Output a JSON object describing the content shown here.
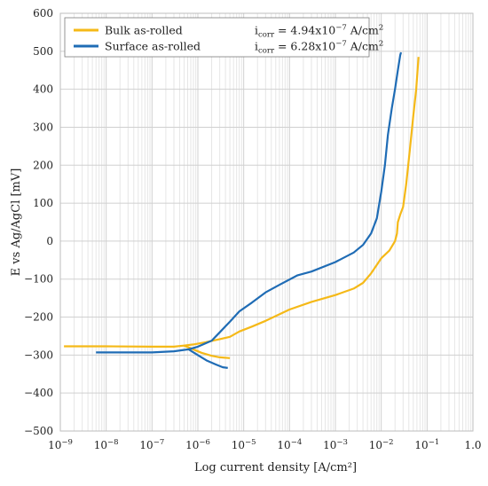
{
  "chart_data": {
    "type": "line",
    "xlabel": "Log current density [A/cm²]",
    "ylabel": "E vs Ag/AgCl [mV]",
    "x_scale": "log",
    "xlim": [
      1e-09,
      1.0
    ],
    "ylim": [
      -500,
      600
    ],
    "grid": true,
    "legend_position": "top-left",
    "x_ticks": [
      {
        "value": 1e-09,
        "base": "10",
        "exp": "−9"
      },
      {
        "value": 1e-08,
        "base": "10",
        "exp": "−8"
      },
      {
        "value": 1e-07,
        "base": "10",
        "exp": "−7"
      },
      {
        "value": 1e-06,
        "base": "10",
        "exp": "−6"
      },
      {
        "value": 1e-05,
        "base": "10",
        "exp": "−5"
      },
      {
        "value": 0.0001,
        "base": "10",
        "exp": "−4"
      },
      {
        "value": 0.001,
        "base": "10",
        "exp": "−3"
      },
      {
        "value": 0.01,
        "base": "10",
        "exp": "−2"
      },
      {
        "value": 0.1,
        "base": "10",
        "exp": "−1"
      },
      {
        "value": 1.0,
        "base": "1.0",
        "exp": ""
      }
    ],
    "y_ticks": [
      600,
      500,
      400,
      300,
      200,
      100,
      0,
      -100,
      -200,
      -300,
      -400,
      -500
    ],
    "series": [
      {
        "name": "Bulk as-rolled",
        "color": "#F5B918",
        "icorr": {
          "prefix": "i",
          "sub": "corr",
          "mid": " = 4.94x10",
          "exp": "−7",
          "unit": " A/cm",
          "unit_exp": "2"
        },
        "points": [
          [
            1.2e-09,
            -277
          ],
          [
            1e-08,
            -277
          ],
          [
            1e-07,
            -278
          ],
          [
            3e-07,
            -278
          ],
          [
            4.94e-07,
            -275
          ],
          [
            8e-07,
            -272
          ],
          [
            1.5e-06,
            -266
          ],
          [
            3e-06,
            -258
          ],
          [
            5e-06,
            -252
          ],
          [
            8e-06,
            -238
          ],
          [
            1.5e-05,
            -225
          ],
          [
            3e-05,
            -210
          ],
          [
            0.0001,
            -180
          ],
          [
            0.0003,
            -160
          ],
          [
            0.001,
            -142
          ],
          [
            0.0025,
            -125
          ],
          [
            0.004,
            -110
          ],
          [
            0.006,
            -85
          ],
          [
            0.01,
            -45
          ],
          [
            0.015,
            -25
          ],
          [
            0.02,
            0
          ],
          [
            0.022,
            20
          ],
          [
            0.023,
            50
          ],
          [
            0.026,
            70
          ],
          [
            0.03,
            90
          ],
          [
            0.035,
            150
          ],
          [
            0.042,
            240
          ],
          [
            0.05,
            330
          ],
          [
            0.058,
            400
          ],
          [
            0.065,
            485
          ]
        ],
        "cathodic": [
          [
            4.94e-07,
            -275
          ],
          [
            7e-07,
            -282
          ],
          [
            1.2e-06,
            -294
          ],
          [
            2e-06,
            -302
          ],
          [
            3e-06,
            -306
          ],
          [
            5e-06,
            -308
          ]
        ]
      },
      {
        "name": "Surface as-rolled",
        "color": "#1F6CB5",
        "icorr": {
          "prefix": "i",
          "sub": "corr",
          "mid": " = 6.28x10",
          "exp": "−7",
          "unit": " A/cm",
          "unit_exp": "2"
        },
        "points": [
          [
            6e-09,
            -293
          ],
          [
            3e-08,
            -293
          ],
          [
            1e-07,
            -293
          ],
          [
            3e-07,
            -290
          ],
          [
            6.28e-07,
            -285
          ],
          [
            1e-06,
            -278
          ],
          [
            2e-06,
            -262
          ],
          [
            3e-06,
            -240
          ],
          [
            5e-06,
            -212
          ],
          [
            8e-06,
            -185
          ],
          [
            1.5e-05,
            -162
          ],
          [
            3e-05,
            -135
          ],
          [
            6e-05,
            -115
          ],
          [
            0.00015,
            -90
          ],
          [
            0.0003,
            -80
          ],
          [
            0.001,
            -55
          ],
          [
            0.0025,
            -30
          ],
          [
            0.004,
            -10
          ],
          [
            0.006,
            20
          ],
          [
            0.008,
            60
          ],
          [
            0.01,
            130
          ],
          [
            0.012,
            200
          ],
          [
            0.014,
            280
          ],
          [
            0.017,
            350
          ],
          [
            0.02,
            400
          ],
          [
            0.023,
            450
          ],
          [
            0.026,
            490
          ],
          [
            0.027,
            497
          ]
        ],
        "cathodic": [
          [
            6.28e-07,
            -285
          ],
          [
            1e-06,
            -300
          ],
          [
            1.6e-06,
            -315
          ],
          [
            2.5e-06,
            -325
          ],
          [
            3.5e-06,
            -332
          ],
          [
            4.5e-06,
            -334
          ]
        ]
      }
    ]
  }
}
